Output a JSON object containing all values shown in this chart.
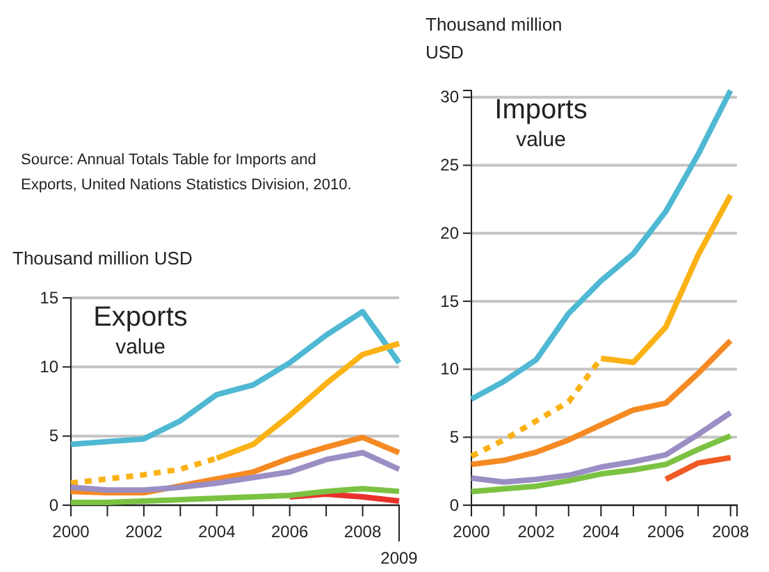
{
  "chart_data": [
    {
      "type": "line",
      "title": "Exports",
      "subtitle": "value",
      "ylabel": "Thousand million USD",
      "annotations": [
        "Source: Annual Totals Table for Imports and Exports, United Nations Statistics Division, 2010.",
        {
          "text": "2009",
          "x": 2009
        }
      ],
      "xlim": [
        2000,
        2009
      ],
      "ylim": [
        0,
        15
      ],
      "yticks": [
        0,
        5,
        10,
        15
      ],
      "xticks": [
        2000,
        {
          "value": 2001,
          "label": null
        },
        2002,
        {
          "value": 2003,
          "label": null
        },
        2004,
        {
          "value": 2005,
          "label": null
        },
        2006,
        {
          "value": 2007,
          "label": null
        },
        2008,
        {
          "value": 2009,
          "label": null
        }
      ],
      "grid": "y",
      "series": [
        {
          "color": "#4fb8d3",
          "x": [
            2000,
            2001,
            2002,
            2003,
            2004,
            2005,
            2006,
            2007,
            2008,
            2009
          ],
          "values": [
            4.4,
            4.6,
            4.8,
            6.1,
            8.0,
            8.7,
            10.3,
            12.3,
            14.0,
            10.3
          ]
        },
        {
          "color": "#fbb215",
          "line_style": "dotted",
          "x": [
            2000,
            2001,
            2002,
            2003,
            2004
          ],
          "values": [
            1.6,
            1.9,
            2.2,
            2.6,
            3.4
          ]
        },
        {
          "color": "#fbb215",
          "x": [
            2004,
            2005,
            2006,
            2007,
            2008,
            2009
          ],
          "values": [
            3.4,
            4.4,
            6.5,
            8.8,
            10.9,
            11.7
          ]
        },
        {
          "color": "#e8312a",
          "x": [
            2006,
            2007,
            2008,
            2009
          ],
          "values": [
            0.6,
            0.8,
            0.6,
            0.3
          ]
        },
        {
          "color": "#f58a22",
          "x": [
            2000,
            2001,
            2002,
            2003,
            2004,
            2005,
            2006,
            2007,
            2008,
            2009
          ],
          "values": [
            1.0,
            0.9,
            0.9,
            1.4,
            1.9,
            2.4,
            3.4,
            4.2,
            4.9,
            3.8
          ]
        },
        {
          "color": "#9b8ec4",
          "x": [
            2000,
            2001,
            2002,
            2003,
            2004,
            2005,
            2006,
            2007,
            2008,
            2009
          ],
          "values": [
            1.3,
            1.1,
            1.1,
            1.3,
            1.6,
            2.0,
            2.4,
            3.3,
            3.8,
            2.6
          ]
        },
        {
          "color": "#7cc242",
          "x": [
            2000,
            2001,
            2002,
            2003,
            2004,
            2005,
            2006,
            2007,
            2008,
            2009
          ],
          "values": [
            0.2,
            0.2,
            0.3,
            0.4,
            0.5,
            0.6,
            0.7,
            1.0,
            1.2,
            1.0
          ]
        }
      ]
    },
    {
      "type": "line",
      "title": "Imports",
      "subtitle": "value",
      "ylabel": "Thousand million USD",
      "xlim": [
        2000,
        2008.2
      ],
      "ylim": [
        0,
        30.5
      ],
      "yticks": [
        0,
        5,
        10,
        15,
        20,
        25,
        30
      ],
      "xticks": [
        2000,
        {
          "value": 2001,
          "label": null
        },
        2002,
        {
          "value": 2003,
          "label": null
        },
        2004,
        {
          "value": 2005,
          "label": null
        },
        2006,
        {
          "value": 2007,
          "label": null
        },
        2008
      ],
      "grid": "y",
      "series": [
        {
          "color": "#4fb8d3",
          "x": [
            2000,
            2001,
            2002,
            2003,
            2004,
            2005,
            2006,
            2007,
            2008
          ],
          "values": [
            7.8,
            9.1,
            10.7,
            14.1,
            16.5,
            18.5,
            21.6,
            25.8,
            30.5
          ]
        },
        {
          "color": "#fbb215",
          "line_style": "dotted",
          "x": [
            2000,
            2001,
            2002,
            2003,
            2004
          ],
          "values": [
            3.6,
            4.8,
            6.2,
            7.6,
            10.8
          ]
        },
        {
          "color": "#fbb215",
          "x": [
            2004,
            2005,
            2006,
            2007,
            2008
          ],
          "values": [
            10.8,
            10.5,
            13.1,
            18.4,
            22.8
          ]
        },
        {
          "color": "#f58a22",
          "x": [
            2000,
            2001,
            2002,
            2003,
            2004,
            2005,
            2006,
            2007,
            2008
          ],
          "values": [
            3.0,
            3.3,
            3.9,
            4.8,
            5.9,
            7.0,
            7.5,
            9.7,
            12.1
          ]
        },
        {
          "color": "#9b8ec4",
          "x": [
            2000,
            2001,
            2002,
            2003,
            2004,
            2005,
            2006,
            2007,
            2008
          ],
          "values": [
            2.0,
            1.7,
            1.9,
            2.2,
            2.8,
            3.2,
            3.7,
            5.2,
            6.8
          ]
        },
        {
          "color": "#7cc242",
          "x": [
            2000,
            2001,
            2002,
            2003,
            2004,
            2005,
            2006,
            2007,
            2008
          ],
          "values": [
            1.0,
            1.2,
            1.4,
            1.8,
            2.3,
            2.6,
            3.0,
            4.1,
            5.1
          ]
        },
        {
          "color": "#f05a24",
          "x": [
            2006,
            2007,
            2008
          ],
          "values": [
            1.9,
            3.1,
            3.5
          ]
        }
      ]
    }
  ]
}
